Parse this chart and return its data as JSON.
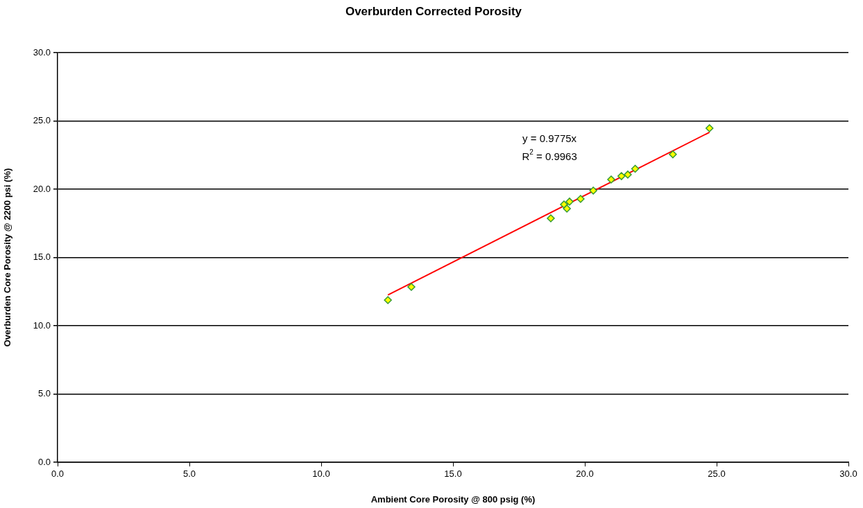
{
  "chart_data": {
    "type": "scatter",
    "title": "Overburden Corrected Porosity",
    "xlabel": "Ambient Core Porosity @ 800 psig (%)",
    "ylabel": "Overburden Core Porosity @ 2200 psi (%)",
    "xlim": [
      0,
      30
    ],
    "xticks": [
      {
        "value": 0,
        "label": "0.0"
      },
      {
        "value": 5,
        "label": "5.0"
      },
      {
        "value": 10,
        "label": "10.0"
      },
      {
        "value": 15,
        "label": "15.0"
      },
      {
        "value": 20,
        "label": "20.0"
      },
      {
        "value": 25,
        "label": "25.0"
      },
      {
        "value": 30,
        "label": "30.0"
      }
    ],
    "ylim": [
      0,
      30
    ],
    "yticks": [
      {
        "value": 0,
        "label": "0.0"
      },
      {
        "value": 5,
        "label": "5.0"
      },
      {
        "value": 10,
        "label": "10.0"
      },
      {
        "value": 15,
        "label": "15.0"
      },
      {
        "value": 20,
        "label": "20.0"
      },
      {
        "value": 25,
        "label": "25.0"
      },
      {
        "value": 30,
        "label": "30.0"
      }
    ],
    "grid": "y",
    "legend": false,
    "annotations": [
      "y = 0.9775x",
      "R$^{2}$ = 0.9963"
    ],
    "series": [
      {
        "marker": "diamond",
        "color": "#ffff00",
        "x": [
          12.53,
          13.42,
          18.71,
          19.21,
          19.32,
          19.42,
          19.84,
          20.32,
          21.0,
          21.39,
          21.63,
          21.91,
          23.34,
          24.73
        ],
        "values": [
          11.88,
          12.84,
          17.87,
          18.88,
          18.58,
          19.09,
          19.29,
          19.9,
          20.71,
          20.96,
          21.07,
          21.5,
          22.55,
          24.47
        ]
      },
      {
        "type": "line",
        "marker": "none",
        "color": "#ff0000",
        "x": [
          12.53,
          24.73
        ],
        "values": [
          12.25,
          24.17
        ]
      }
    ]
  }
}
